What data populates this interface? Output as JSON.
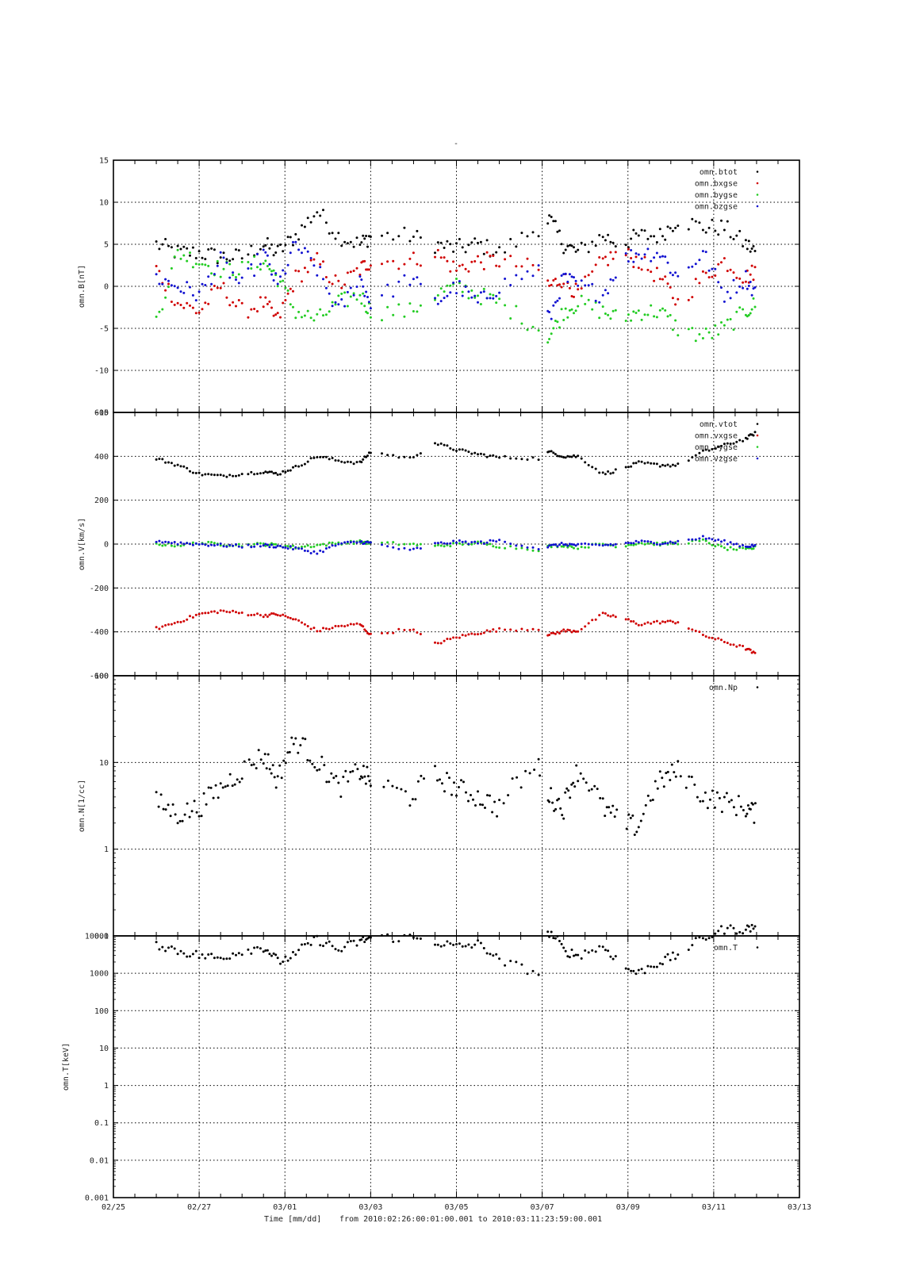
{
  "figure": {
    "top_title": "-",
    "x_axis_label": "Time [mm/dd]",
    "range_text": "from 2010:02:26:00:01:00.001  to  2010:03:11:23:59:00.001",
    "x_tick_labels": [
      "02/25",
      "02/27",
      "03/01",
      "03/03",
      "03/05",
      "03/07",
      "03/09",
      "03/11",
      "03/13"
    ]
  },
  "chart_data": [
    {
      "type": "scatter",
      "ylabel": "omn.B[nT]",
      "ylim": [
        -15,
        15
      ],
      "y_scale": "linear",
      "y_ticks": [
        "15",
        "10",
        "5",
        "0",
        "-5",
        "-10",
        "-15"
      ],
      "grid": true,
      "legend_position": "top-right",
      "series": [
        {
          "name": "omn.btot",
          "color": "#000000",
          "x": [
            "02/26 00:00",
            "02/26 12:00",
            "02/27 00:00",
            "02/27 12:00",
            "02/28 00:00",
            "02/28 12:00",
            "02/28 20:00",
            "03/01 06:00",
            "03/01 18:00",
            "03/02 06:00",
            "03/02 18:00",
            "03/03 00:00",
            "03/03 22:00",
            "03/04 12:00",
            "03/05 00:00",
            "03/05 12:00",
            "03/06 00:00",
            "03/06 22:00",
            "03/07 04:00",
            "03/07 12:00",
            "03/07 20:00",
            "03/08 10:00",
            "03/08 20:00",
            "03/09 06:00",
            "03/09 18:00",
            "03/10 04:00",
            "03/10 18:00",
            "03/11 06:00",
            "03/11 18:00",
            "03/11 23:59"
          ],
          "values": [
            5,
            4,
            4,
            3.5,
            3.5,
            5,
            4,
            6,
            9,
            6,
            5,
            6,
            6,
            5,
            4.5,
            5,
            4,
            7,
            8,
            5,
            4,
            6,
            5,
            6,
            6,
            8,
            7,
            7,
            5,
            4
          ]
        },
        {
          "name": "omn.bxgse",
          "color": "#d00000",
          "x": [
            "02/26 00:00",
            "02/26 12:00",
            "02/27 00:00",
            "02/27 12:00",
            "02/28 00:00",
            "02/28 12:00",
            "02/28 20:00",
            "03/01 06:00",
            "03/01 18:00",
            "03/02 06:00",
            "03/02 18:00",
            "03/03 00:00",
            "03/03 22:00",
            "03/04 12:00",
            "03/05 00:00",
            "03/05 12:00",
            "03/06 00:00",
            "03/06 22:00",
            "03/07 04:00",
            "03/07 12:00",
            "03/07 20:00",
            "03/08 10:00",
            "03/08 20:00",
            "03/09 06:00",
            "03/09 18:00",
            "03/10 04:00",
            "03/10 18:00",
            "03/11 06:00",
            "03/11 18:00",
            "03/11 23:59"
          ],
          "values": [
            2,
            -2,
            -3,
            0,
            -3,
            -2,
            -4,
            1,
            3,
            0,
            2,
            3,
            3,
            4,
            2,
            3,
            3,
            2,
            0,
            1,
            -1,
            3,
            4,
            3,
            1,
            -2,
            1,
            3,
            1,
            2
          ]
        },
        {
          "name": "omn.bygse",
          "color": "#22cc22",
          "x": [
            "02/26 00:00",
            "02/26 12:00",
            "02/27 00:00",
            "02/27 12:00",
            "02/28 00:00",
            "02/28 12:00",
            "02/28 20:00",
            "03/01 06:00",
            "03/01 18:00",
            "03/02 06:00",
            "03/02 18:00",
            "03/03 00:00",
            "03/03 22:00",
            "03/04 12:00",
            "03/05 00:00",
            "03/05 12:00",
            "03/06 00:00",
            "03/06 22:00",
            "03/07 04:00",
            "03/07 12:00",
            "03/07 20:00",
            "03/08 10:00",
            "03/08 20:00",
            "03/09 06:00",
            "03/09 18:00",
            "03/10 04:00",
            "03/10 18:00",
            "03/11 06:00",
            "03/11 18:00",
            "03/11 23:59"
          ],
          "values": [
            -4,
            4,
            3,
            2,
            2,
            3,
            1,
            -3,
            -4,
            -2,
            -1,
            -3,
            -3,
            -1,
            0,
            -1,
            -2,
            -5,
            -6,
            -3,
            -2,
            -3,
            -4,
            -3,
            -3,
            -5,
            -6,
            -5,
            -3,
            -2
          ]
        },
        {
          "name": "omn.bzgse",
          "color": "#1010d0",
          "x": [
            "02/26 00:00",
            "02/26 12:00",
            "02/27 00:00",
            "02/27 12:00",
            "02/28 00:00",
            "02/28 12:00",
            "02/28 20:00",
            "03/01 06:00",
            "03/01 18:00",
            "03/02 06:00",
            "03/02 18:00",
            "03/03 00:00",
            "03/03 22:00",
            "03/04 12:00",
            "03/05 00:00",
            "03/05 12:00",
            "03/06 00:00",
            "03/06 22:00",
            "03/07 04:00",
            "03/07 12:00",
            "03/07 20:00",
            "03/08 10:00",
            "03/08 20:00",
            "03/09 06:00",
            "03/09 18:00",
            "03/10 04:00",
            "03/10 18:00",
            "03/11 06:00",
            "03/11 18:00",
            "03/11 23:59"
          ],
          "values": [
            1,
            0,
            -1,
            3,
            0,
            4,
            0,
            5,
            2,
            -3,
            1,
            -2,
            1,
            -2,
            0,
            -2,
            0,
            2,
            -4,
            1,
            0,
            -1,
            3,
            4,
            4,
            1,
            4,
            -1,
            1,
            -1
          ]
        }
      ]
    },
    {
      "type": "scatter",
      "ylabel": "omn.V[km/s]",
      "ylim": [
        -600,
        600
      ],
      "y_scale": "linear",
      "y_ticks": [
        "600",
        "400",
        "200",
        "0",
        "-200",
        "-400",
        "-600"
      ],
      "grid": true,
      "legend_position": "top-right",
      "series": [
        {
          "name": "omn.vtot",
          "color": "#000000",
          "x": [
            "02/26 00:00",
            "02/26 12:00",
            "02/27 00:00",
            "02/27 12:00",
            "02/28 00:00",
            "02/28 12:00",
            "02/28 20:00",
            "03/01 06:00",
            "03/01 18:00",
            "03/02 06:00",
            "03/02 18:00",
            "03/03 00:00",
            "03/03 22:00",
            "03/04 12:00",
            "03/05 00:00",
            "03/05 12:00",
            "03/06 00:00",
            "03/06 22:00",
            "03/07 04:00",
            "03/07 12:00",
            "03/07 20:00",
            "03/08 10:00",
            "03/08 20:00",
            "03/09 06:00",
            "03/09 18:00",
            "03/10 04:00",
            "03/10 18:00",
            "03/11 06:00",
            "03/11 18:00",
            "03/11 23:59"
          ],
          "values": [
            390,
            360,
            320,
            310,
            320,
            330,
            320,
            350,
            400,
            380,
            370,
            420,
            390,
            460,
            430,
            410,
            395,
            390,
            420,
            400,
            400,
            320,
            340,
            370,
            360,
            360,
            420,
            450,
            480,
            510
          ]
        },
        {
          "name": "omn.vxgse",
          "color": "#d00000",
          "x": [
            "02/26 00:00",
            "02/26 12:00",
            "02/27 00:00",
            "02/27 12:00",
            "02/28 00:00",
            "02/28 12:00",
            "02/28 20:00",
            "03/01 06:00",
            "03/01 18:00",
            "03/02 06:00",
            "03/02 18:00",
            "03/03 00:00",
            "03/03 22:00",
            "03/04 12:00",
            "03/05 00:00",
            "03/05 12:00",
            "03/06 00:00",
            "03/06 22:00",
            "03/07 04:00",
            "03/07 12:00",
            "03/07 20:00",
            "03/08 10:00",
            "03/08 20:00",
            "03/09 06:00",
            "03/09 18:00",
            "03/10 04:00",
            "03/10 18:00",
            "03/11 06:00",
            "03/11 18:00",
            "03/11 23:59"
          ],
          "values": [
            -385,
            -355,
            -320,
            -305,
            -315,
            -325,
            -320,
            -345,
            -395,
            -375,
            -365,
            -415,
            -385,
            -455,
            -425,
            -405,
            -390,
            -385,
            -415,
            -395,
            -395,
            -320,
            -335,
            -365,
            -355,
            -355,
            -415,
            -445,
            -475,
            -505
          ]
        },
        {
          "name": "omn.vygse",
          "color": "#22cc22",
          "x": [
            "02/26 00:00",
            "02/26 12:00",
            "02/27 00:00",
            "02/27 12:00",
            "02/28 00:00",
            "02/28 12:00",
            "02/28 20:00",
            "03/01 06:00",
            "03/01 18:00",
            "03/02 06:00",
            "03/02 18:00",
            "03/03 00:00",
            "03/03 22:00",
            "03/04 12:00",
            "03/05 00:00",
            "03/05 12:00",
            "03/06 00:00",
            "03/06 22:00",
            "03/07 04:00",
            "03/07 12:00",
            "03/07 20:00",
            "03/08 10:00",
            "03/08 20:00",
            "03/09 06:00",
            "03/09 18:00",
            "03/10 04:00",
            "03/10 18:00",
            "03/11 06:00",
            "03/11 18:00",
            "03/11 23:59"
          ],
          "values": [
            0,
            -5,
            5,
            0,
            -5,
            0,
            -5,
            -15,
            -5,
            5,
            10,
            5,
            0,
            -10,
            0,
            5,
            -10,
            -25,
            -10,
            -5,
            -15,
            0,
            -10,
            5,
            0,
            5,
            15,
            -20,
            -25,
            -15
          ]
        },
        {
          "name": "omn.vzgse",
          "color": "#1010d0",
          "x": [
            "02/26 00:00",
            "02/26 12:00",
            "02/27 00:00",
            "02/27 12:00",
            "02/28 00:00",
            "02/28 12:00",
            "02/28 20:00",
            "03/01 06:00",
            "03/01 18:00",
            "03/02 06:00",
            "03/02 18:00",
            "03/03 00:00",
            "03/03 22:00",
            "03/04 12:00",
            "03/05 00:00",
            "03/05 12:00",
            "03/06 00:00",
            "03/06 22:00",
            "03/07 04:00",
            "03/07 12:00",
            "03/07 20:00",
            "03/08 10:00",
            "03/08 20:00",
            "03/09 06:00",
            "03/09 18:00",
            "03/10 04:00",
            "03/10 18:00",
            "03/11 06:00",
            "03/11 18:00",
            "03/11 23:59"
          ],
          "values": [
            15,
            5,
            0,
            -5,
            -10,
            -5,
            -10,
            -20,
            -40,
            0,
            10,
            5,
            -30,
            0,
            10,
            5,
            15,
            -20,
            -10,
            0,
            -5,
            -5,
            0,
            10,
            5,
            10,
            30,
            10,
            -10,
            -5
          ]
        }
      ]
    },
    {
      "type": "scatter",
      "ylabel": "omn.N[1/cc]",
      "ylim": [
        0.1,
        100
      ],
      "y_scale": "log",
      "y_ticks": [
        "100",
        "10",
        "1",
        "0.1"
      ],
      "grid": true,
      "legend_position": "top-right",
      "series": [
        {
          "name": "omn.Np",
          "color": "#000000",
          "x": [
            "02/26 00:00",
            "02/26 12:00",
            "02/27 00:00",
            "02/27 12:00",
            "02/28 00:00",
            "02/28 12:00",
            "02/28 20:00",
            "03/01 06:00",
            "03/01 18:00",
            "03/02 06:00",
            "03/02 18:00",
            "03/03 00:00",
            "03/03 22:00",
            "03/04 12:00",
            "03/05 00:00",
            "03/05 12:00",
            "03/06 00:00",
            "03/06 22:00",
            "03/07 04:00",
            "03/07 12:00",
            "03/07 20:00",
            "03/08 10:00",
            "03/08 20:00",
            "03/09 06:00",
            "03/09 18:00",
            "03/10 04:00",
            "03/10 18:00",
            "03/11 06:00",
            "03/11 18:00",
            "03/11 23:59"
          ],
          "values": [
            3.5,
            2.5,
            3,
            5,
            8,
            12,
            6,
            18,
            10,
            5,
            8,
            6,
            4,
            7,
            5,
            4,
            3,
            9,
            4,
            3,
            8,
            3,
            2,
            1.8,
            6,
            8,
            4,
            3.5,
            3,
            2.5
          ]
        }
      ]
    },
    {
      "type": "scatter",
      "ylabel": "omn.T[keV]",
      "ylim": [
        0.001,
        10000
      ],
      "y_scale": "log",
      "y_ticks": [
        "10000",
        "1000",
        "100",
        "10",
        "1",
        "0.1",
        "0.01",
        "0.001"
      ],
      "grid": true,
      "legend_position": "top-right",
      "series": [
        {
          "name": "omn.T",
          "color": "#000000",
          "x": [
            "02/26 00:00",
            "02/26 12:00",
            "02/27 00:00",
            "02/27 12:00",
            "02/28 00:00",
            "02/28 12:00",
            "02/28 20:00",
            "03/01 06:00",
            "03/01 18:00",
            "03/02 06:00",
            "03/02 18:00",
            "03/03 00:00",
            "03/03 22:00",
            "03/04 12:00",
            "03/05 00:00",
            "03/05 12:00",
            "03/06 00:00",
            "03/06 22:00",
            "03/07 04:00",
            "03/07 12:00",
            "03/07 20:00",
            "03/08 10:00",
            "03/08 20:00",
            "03/09 06:00",
            "03/09 18:00",
            "03/10 04:00",
            "03/10 18:00",
            "03/11 06:00",
            "03/11 18:00",
            "03/11 23:59"
          ],
          "values": [
            6000,
            4000,
            3000,
            2500,
            4000,
            5000,
            2000,
            3000,
            8000,
            4000,
            7000,
            9000,
            9000,
            7000,
            5000,
            6000,
            2000,
            1000,
            12000,
            4000,
            3000,
            5000,
            1500,
            1000,
            2000,
            3000,
            8000,
            15000,
            15000,
            18000
          ]
        }
      ]
    }
  ]
}
